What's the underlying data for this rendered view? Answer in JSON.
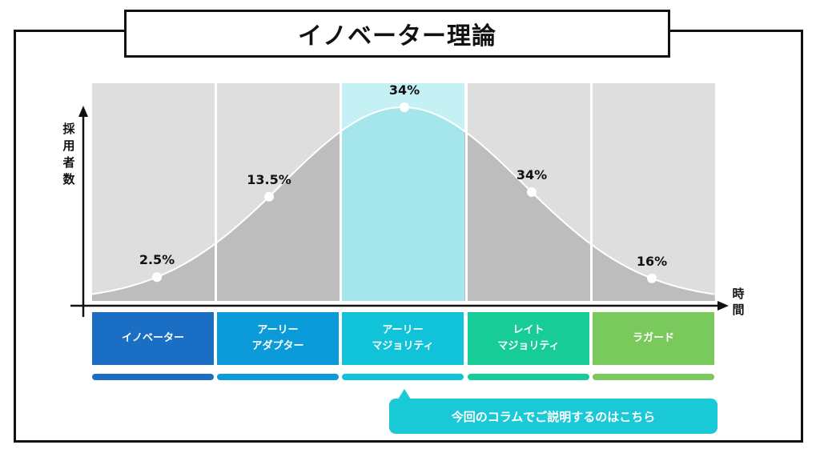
{
  "title": "イノベーター理論",
  "cta_label": "今回のコラムでご説明するのはこちら",
  "chart_data": {
    "type": "area",
    "title": "イノベーター理論",
    "ylabel": "採用者数",
    "xlabel": "時間",
    "categories": [
      "イノベーター",
      "アーリー\nアダプター",
      "アーリー\nマジョリティ",
      "レイト\nマジョリティ",
      "ラガード"
    ],
    "values": [
      2.5,
      13.5,
      34,
      34,
      16
    ],
    "value_labels": [
      "2.5%",
      "13.5%",
      "34%",
      "34%",
      "16%"
    ],
    "highlight_index": 2,
    "colors": {
      "segment_bg": "#dedede",
      "segment_bg_highlight": "#c5f1f4",
      "curve_fill": "#bdbdbd",
      "curve_fill_highlight": "#a4e6ec",
      "category_colors": [
        "#1a6fc4",
        "#0b9bd8",
        "#10c3d8",
        "#17cc96",
        "#7ac95c"
      ]
    }
  }
}
